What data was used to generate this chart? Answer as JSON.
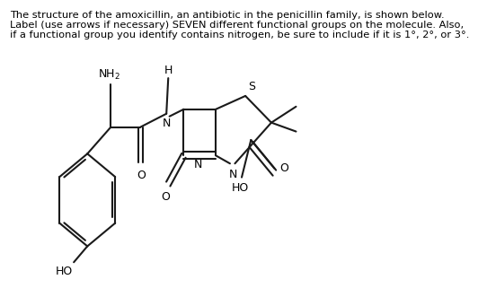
{
  "bg_color": "#ffffff",
  "line_color": "#1a1a1a",
  "line_width": 1.5,
  "font_size_label": 9,
  "font_size_title": 8.2,
  "title_line1": "The structure of the amoxicillin, an antibiotic in the penicillin family, is shown below.",
  "title_line2": "Label (use arrows if necessary) SEVEN different functional groups on the molecule. Also,",
  "title_line3": "if a functional group you identify contains nitrogen, be sure to include if it is 1°, 2°, or 3°."
}
